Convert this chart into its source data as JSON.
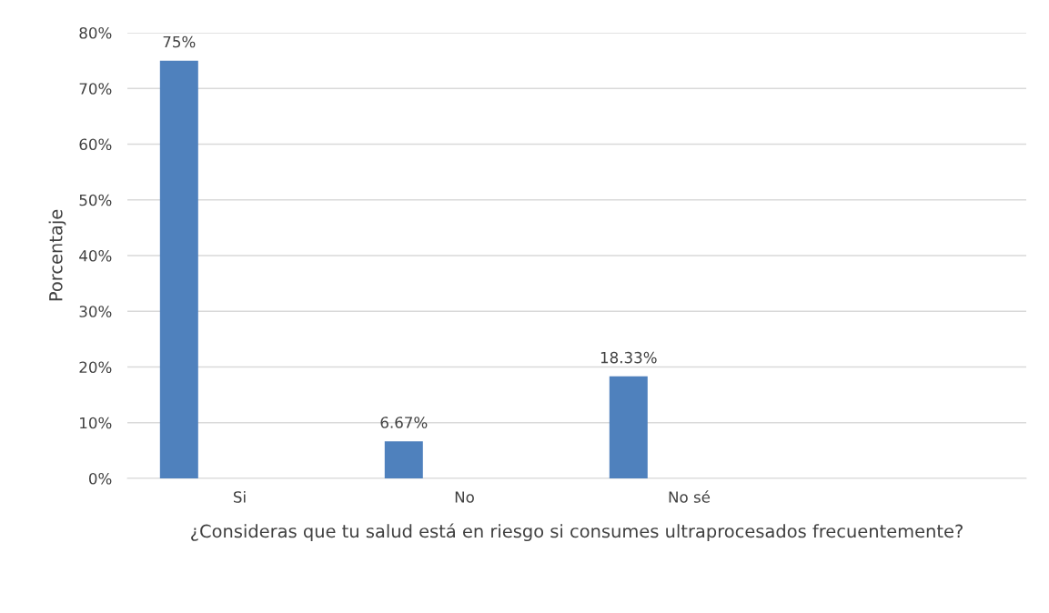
{
  "chart_data": {
    "type": "bar",
    "xlabel": "¿Consideras que tu salud está en riesgo si consumes ultraprocesados frecuentemente?",
    "ylabel": "Porcentaje",
    "categories": [
      "Si",
      "No",
      "No sé",
      null
    ],
    "values": [
      75,
      6.67,
      18.33,
      null
    ],
    "value_labels": [
      "75%",
      "6.67%",
      "18.33%",
      null
    ],
    "color": "#4f81bd",
    "ylim": [
      0,
      80
    ],
    "yticks": [
      {
        "value": 0,
        "label": "0%"
      },
      {
        "value": 10,
        "label": "10%"
      },
      {
        "value": 20,
        "label": "20%"
      },
      {
        "value": 30,
        "label": "30%"
      },
      {
        "value": 40,
        "label": "40%"
      },
      {
        "value": 50,
        "label": "50%"
      },
      {
        "value": 60,
        "label": "60%"
      },
      {
        "value": 70,
        "label": "70%"
      },
      {
        "value": 80,
        "label": "80%"
      }
    ],
    "grid": "y",
    "legend": false
  }
}
